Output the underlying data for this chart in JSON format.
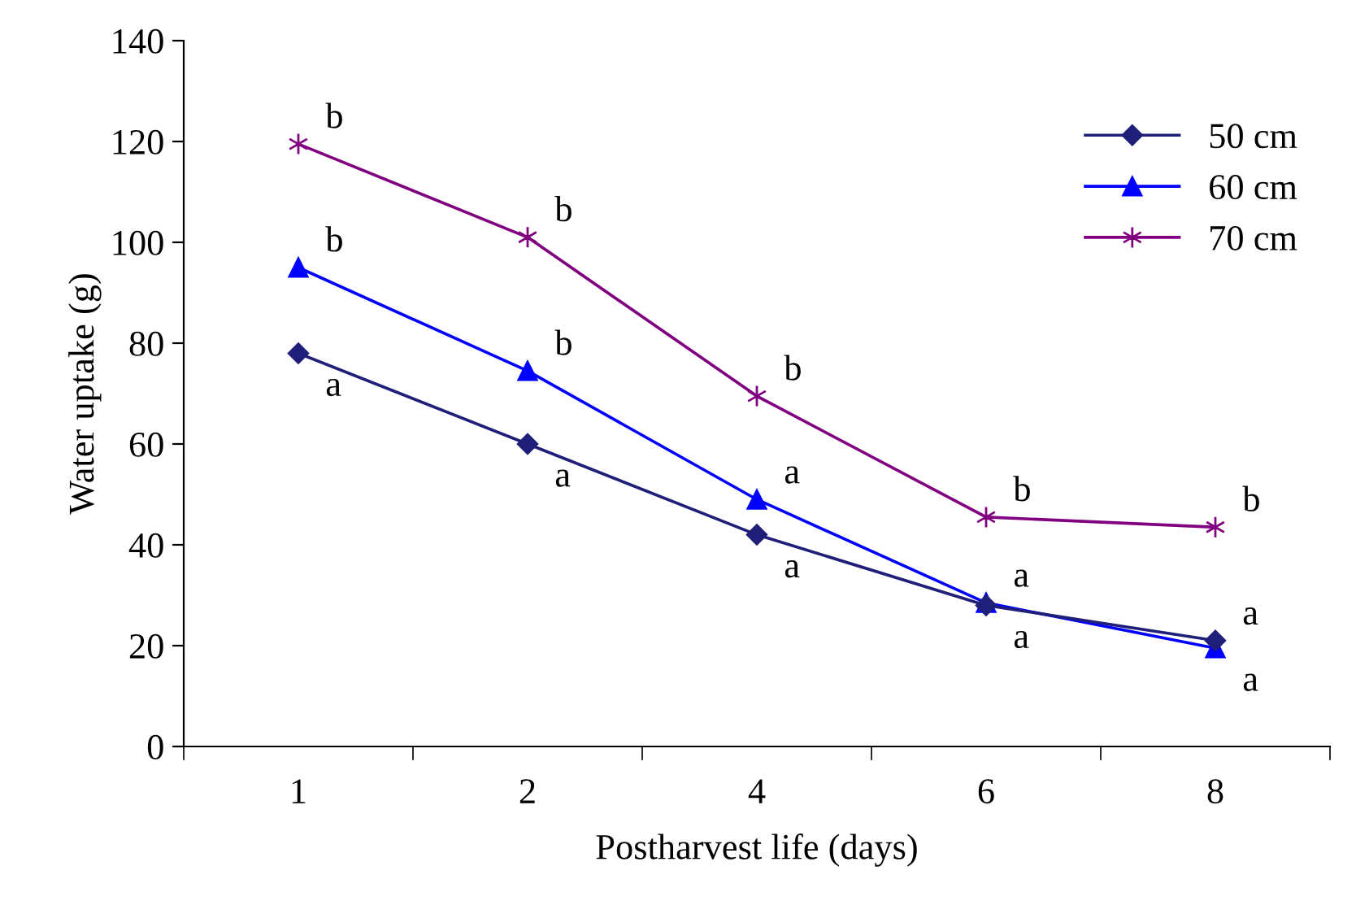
{
  "chart_data": {
    "type": "line",
    "xlabel": "Postharvest life (days)",
    "ylabel": "Water uptake (g)",
    "categories": [
      "1",
      "2",
      "4",
      "6",
      "8"
    ],
    "series": [
      {
        "name": "50 cm",
        "color": "#1f1f7a",
        "marker": "diamond",
        "values": [
          78,
          60,
          42,
          28,
          21
        ]
      },
      {
        "name": "60 cm",
        "color": "#0000ff",
        "marker": "triangle",
        "values": [
          95,
          74.5,
          49,
          28.5,
          19.5
        ]
      },
      {
        "name": "70 cm",
        "color": "#800080",
        "marker": "cross",
        "values": [
          119.5,
          101,
          69.5,
          45.5,
          43.5
        ]
      }
    ],
    "ylim": [
      0,
      140
    ],
    "yticks": [
      0,
      20,
      40,
      60,
      80,
      100,
      120,
      140
    ],
    "grid": false,
    "legend": "top right",
    "annotations": [
      {
        "text": "b",
        "x": "1",
        "y": 119.5
      },
      {
        "text": "b",
        "x": "1",
        "y": 95
      },
      {
        "text": "a",
        "x": "1",
        "y": 78
      },
      {
        "text": "b",
        "x": "2",
        "y": 101
      },
      {
        "text": "b",
        "x": "2",
        "y": 74.5
      },
      {
        "text": "a",
        "x": "2",
        "y": 60
      },
      {
        "text": "b",
        "x": "4",
        "y": 69.5
      },
      {
        "text": "a",
        "x": "4",
        "y": 49
      },
      {
        "text": "a",
        "x": "4",
        "y": 42
      },
      {
        "text": "b",
        "x": "6",
        "y": 45.5
      },
      {
        "text": "a",
        "x": "6",
        "y": 28.5
      },
      {
        "text": "a",
        "x": "6",
        "y": 28
      },
      {
        "text": "b",
        "x": "8",
        "y": 43.5
      },
      {
        "text": "a",
        "x": "8",
        "y": 21
      },
      {
        "text": "a",
        "x": "8",
        "y": 19.5
      }
    ]
  }
}
